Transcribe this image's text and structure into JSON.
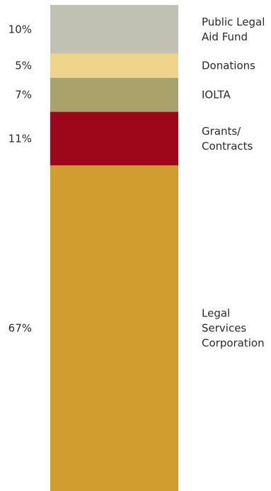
{
  "chart_data": {
    "type": "bar",
    "stacked": true,
    "unit": "%",
    "order": "top-to-bottom",
    "categories": [
      "Public Legal Aid Fund",
      "Donations",
      "IOLTA",
      "Grants/ Contracts",
      "Legal Services Corporation"
    ],
    "category_lines": [
      [
        "Public Legal",
        "Aid Fund"
      ],
      [
        "Donations"
      ],
      [
        "IOLTA"
      ],
      [
        "Grants/",
        "Contracts"
      ],
      [
        "Legal",
        "Services",
        "Corporation"
      ]
    ],
    "values": [
      10,
      5,
      7,
      11,
      67
    ],
    "value_labels": [
      "10%",
      "5%",
      "7%",
      "11%",
      "67%"
    ],
    "colors": [
      "#c0c1b2",
      "#eed58b",
      "#a7a36b",
      "#9e0619",
      "#cf9c2d"
    ],
    "title": "",
    "xlabel": "",
    "ylabel": "",
    "grid": false,
    "legend": "right"
  }
}
